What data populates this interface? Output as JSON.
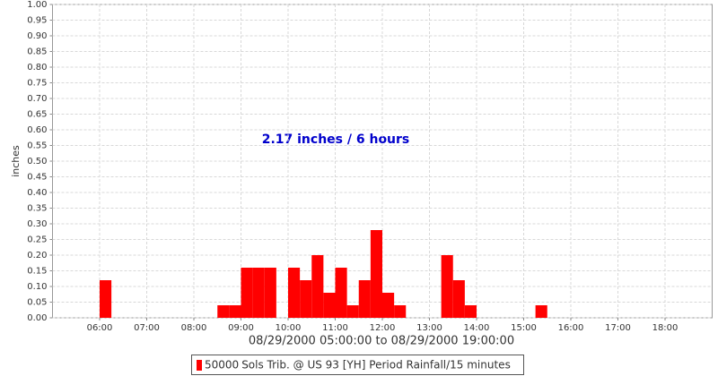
{
  "chart_data": {
    "type": "bar",
    "annotation": "2.17 inches / 6 hours",
    "ylabel": "inches",
    "xlabel": "08/29/2000 05:00:00 to 08/29/2000 19:00:00",
    "x": [
      6,
      8.5,
      8.75,
      9,
      9.25,
      9.5,
      10,
      10.25,
      10.5,
      10.75,
      11,
      11.25,
      11.5,
      11.75,
      12,
      12.25,
      13.25,
      13.5,
      13.75,
      15.25
    ],
    "series": [
      {
        "id": "50000",
        "name": "Sols Trib. @ US 93 [YH] Period Rainfall/15 minutes",
        "color": "#ff0000",
        "values": [
          0.12,
          0.04,
          0.04,
          0.16,
          0.16,
          0.16,
          0.16,
          0.12,
          0.2,
          0.08,
          0.16,
          0.04,
          0.12,
          0.28,
          0.08,
          0.04,
          0.2,
          0.12,
          0.04,
          0.04
        ]
      }
    ],
    "xlim": [
      5,
      19
    ],
    "xticks": [
      {
        "value": 6,
        "label": "06:00"
      },
      {
        "value": 7,
        "label": "07:00"
      },
      {
        "value": 8,
        "label": "08:00"
      },
      {
        "value": 9,
        "label": "09:00"
      },
      {
        "value": 10,
        "label": "10:00"
      },
      {
        "value": 11,
        "label": "11:00"
      },
      {
        "value": 12,
        "label": "12:00"
      },
      {
        "value": 13,
        "label": "13:00"
      },
      {
        "value": 14,
        "label": "14:00"
      },
      {
        "value": 15,
        "label": "15:00"
      },
      {
        "value": 16,
        "label": "16:00"
      },
      {
        "value": 17,
        "label": "17:00"
      },
      {
        "value": 18,
        "label": "18:00"
      }
    ],
    "ylim": [
      0,
      1
    ],
    "yticks": [
      {
        "value": 0,
        "label": "0.00"
      },
      {
        "value": 0.05,
        "label": "0.05"
      },
      {
        "value": 0.1,
        "label": "0.10"
      },
      {
        "value": 0.15,
        "label": "0.15"
      },
      {
        "value": 0.2,
        "label": "0.20"
      },
      {
        "value": 0.25,
        "label": "0.25"
      },
      {
        "value": 0.3,
        "label": "0.30"
      },
      {
        "value": 0.35,
        "label": "0.35"
      },
      {
        "value": 0.4,
        "label": "0.40"
      },
      {
        "value": 0.45,
        "label": "0.45"
      },
      {
        "value": 0.5,
        "label": "0.50"
      },
      {
        "value": 0.55,
        "label": "0.55"
      },
      {
        "value": 0.6,
        "label": "0.60"
      },
      {
        "value": 0.65,
        "label": "0.65"
      },
      {
        "value": 0.7,
        "label": "0.70"
      },
      {
        "value": 0.75,
        "label": "0.75"
      },
      {
        "value": 0.8,
        "label": "0.80"
      },
      {
        "value": 0.85,
        "label": "0.85"
      },
      {
        "value": 0.9,
        "label": "0.90"
      },
      {
        "value": 0.95,
        "label": "0.95"
      },
      {
        "value": 1,
        "label": "1.00"
      }
    ],
    "grid": true
  }
}
